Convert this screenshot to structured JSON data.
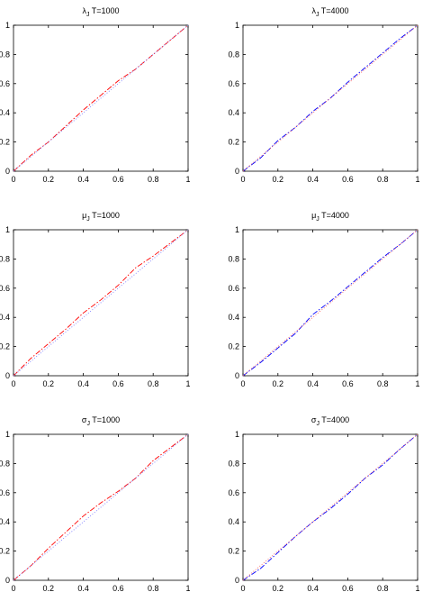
{
  "chart_data": [
    {
      "type": "line",
      "title": {
        "greek": "λ",
        "sub": "J",
        "rest": "T=1000"
      },
      "xlim": [
        0,
        1
      ],
      "ylim": [
        0,
        1
      ],
      "xticks": [
        "0",
        "0.2",
        "0.4",
        "0.6",
        "0.8",
        "1"
      ],
      "yticks": [
        "0",
        "0.2",
        "0.4",
        "0.6",
        "0.8",
        "1"
      ],
      "grid": false,
      "series": [
        {
          "style": "dashdot",
          "color": "#ff0000",
          "x": [
            0,
            0.1,
            0.2,
            0.3,
            0.4,
            0.5,
            0.6,
            0.7,
            0.8,
            0.9,
            1
          ],
          "y": [
            0,
            0.11,
            0.2,
            0.31,
            0.42,
            0.52,
            0.62,
            0.7,
            0.8,
            0.9,
            1
          ]
        },
        {
          "style": "dotted",
          "color": "#8080ff",
          "x": [
            0,
            1
          ],
          "y": [
            0,
            1
          ]
        }
      ]
    },
    {
      "type": "line",
      "title": {
        "greek": "λ",
        "sub": "J",
        "rest": "T=4000"
      },
      "xlim": [
        0,
        1
      ],
      "ylim": [
        0,
        1
      ],
      "xticks": [
        "0",
        "0.2",
        "0.4",
        "0.6",
        "0.8",
        "1"
      ],
      "yticks": [
        "0",
        "0.2",
        "0.4",
        "0.6",
        "0.8",
        "1"
      ],
      "grid": false,
      "series": [
        {
          "style": "dashdot",
          "color": "#0000ff",
          "x": [
            0,
            0.1,
            0.2,
            0.3,
            0.4,
            0.5,
            0.6,
            0.7,
            0.8,
            0.9,
            1
          ],
          "y": [
            0,
            0.09,
            0.21,
            0.3,
            0.41,
            0.5,
            0.61,
            0.71,
            0.81,
            0.91,
            1
          ]
        },
        {
          "style": "dotted",
          "color": "#ff6060",
          "x": [
            0,
            1
          ],
          "y": [
            0,
            1
          ]
        }
      ]
    },
    {
      "type": "line",
      "title": {
        "greek": "μ",
        "sub": "J",
        "rest": "T=1000"
      },
      "xlim": [
        0,
        1
      ],
      "ylim": [
        0,
        1
      ],
      "xticks": [
        "0",
        "0.2",
        "0.4",
        "0.6",
        "0.8",
        "1"
      ],
      "yticks": [
        "0",
        "0.2",
        "0.4",
        "0.6",
        "0.8",
        "1"
      ],
      "grid": false,
      "series": [
        {
          "style": "dashdot",
          "color": "#ff0000",
          "x": [
            0,
            0.1,
            0.2,
            0.3,
            0.4,
            0.5,
            0.6,
            0.7,
            0.8,
            0.9,
            1
          ],
          "y": [
            0,
            0.12,
            0.22,
            0.32,
            0.43,
            0.52,
            0.62,
            0.74,
            0.82,
            0.91,
            1
          ]
        },
        {
          "style": "dotted",
          "color": "#8080ff",
          "x": [
            0,
            1
          ],
          "y": [
            0,
            1
          ]
        }
      ]
    },
    {
      "type": "line",
      "title": {
        "greek": "μ",
        "sub": "J",
        "rest": "T=4000"
      },
      "xlim": [
        0,
        1
      ],
      "ylim": [
        0,
        1
      ],
      "xticks": [
        "0",
        "0.2",
        "0.4",
        "0.6",
        "0.8",
        "1"
      ],
      "yticks": [
        "0",
        "0.2",
        "0.4",
        "0.6",
        "0.8",
        "1"
      ],
      "grid": false,
      "series": [
        {
          "style": "dashdot",
          "color": "#0000ff",
          "x": [
            0,
            0.1,
            0.2,
            0.3,
            0.4,
            0.5,
            0.6,
            0.7,
            0.8,
            0.9,
            1
          ],
          "y": [
            0,
            0.09,
            0.19,
            0.29,
            0.42,
            0.51,
            0.61,
            0.71,
            0.81,
            0.9,
            1
          ]
        },
        {
          "style": "dotted",
          "color": "#ff6060",
          "x": [
            0,
            1
          ],
          "y": [
            0,
            1
          ]
        }
      ]
    },
    {
      "type": "line",
      "title": {
        "greek": "σ",
        "sub": "J",
        "rest": "T=1000"
      },
      "xlim": [
        0,
        1
      ],
      "ylim": [
        0,
        1
      ],
      "xticks": [
        "0",
        "0.2",
        "0.4",
        "0.6",
        "0.8",
        "1"
      ],
      "yticks": [
        "0",
        "0.2",
        "0.4",
        "0.6",
        "0.8",
        "1"
      ],
      "grid": false,
      "series": [
        {
          "style": "dashdot",
          "color": "#ff0000",
          "x": [
            0,
            0.1,
            0.2,
            0.3,
            0.4,
            0.5,
            0.6,
            0.7,
            0.8,
            0.9,
            1
          ],
          "y": [
            0,
            0.1,
            0.22,
            0.33,
            0.44,
            0.53,
            0.61,
            0.7,
            0.82,
            0.91,
            1
          ]
        },
        {
          "style": "dotted",
          "color": "#8080ff",
          "x": [
            0,
            1
          ],
          "y": [
            0,
            1
          ]
        }
      ]
    },
    {
      "type": "line",
      "title": {
        "greek": "σ",
        "sub": "J",
        "rest": "T=4000"
      },
      "xlim": [
        0,
        1
      ],
      "ylim": [
        0,
        1
      ],
      "xticks": [
        "0",
        "0.2",
        "0.4",
        "0.6",
        "0.8",
        "1"
      ],
      "yticks": [
        "0",
        "0.2",
        "0.4",
        "0.6",
        "0.8",
        "1"
      ],
      "grid": false,
      "series": [
        {
          "style": "dashdot",
          "color": "#0000ff",
          "x": [
            0,
            0.1,
            0.2,
            0.3,
            0.4,
            0.5,
            0.6,
            0.7,
            0.8,
            0.9,
            1
          ],
          "y": [
            0,
            0.08,
            0.19,
            0.3,
            0.4,
            0.49,
            0.59,
            0.7,
            0.79,
            0.9,
            1
          ]
        },
        {
          "style": "dotted",
          "color": "#ff6060",
          "x": [
            0,
            1
          ],
          "y": [
            0,
            1
          ]
        }
      ]
    }
  ]
}
